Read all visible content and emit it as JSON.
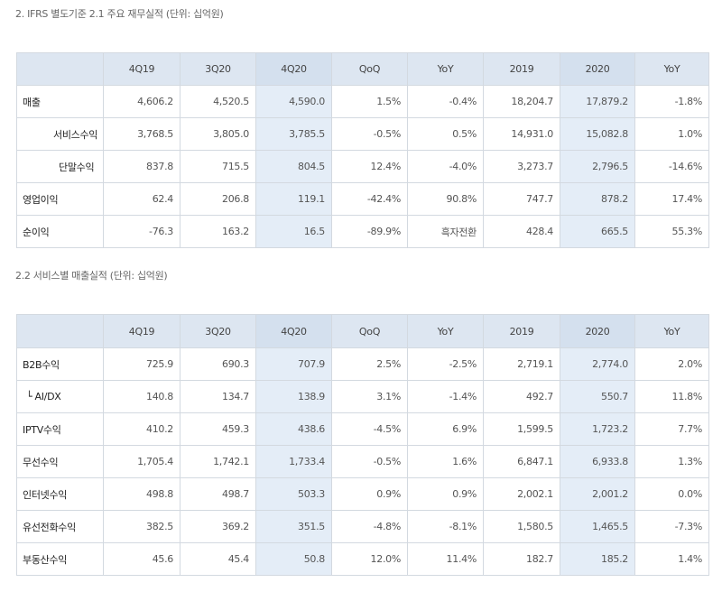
{
  "section1": {
    "caption": "2. IFRS 별도기준 2.1 주요 재무실적 (단위: 십억원)",
    "headers": [
      "",
      "4Q19",
      "3Q20",
      "4Q20",
      "QoQ",
      "YoY",
      "2019",
      "2020",
      "YoY"
    ],
    "rows": [
      {
        "label": "매출",
        "values": [
          "4,606.2",
          "4,520.5",
          "4,590.0",
          "1.5%",
          "-0.4%",
          "18,204.7",
          "17,879.2",
          "-1.8%"
        ]
      },
      {
        "label": "서비스수익",
        "values": [
          "3,768.5",
          "3,805.0",
          "3,785.5",
          "-0.5%",
          "0.5%",
          "14,931.0",
          "15,082.8",
          "1.0%"
        ]
      },
      {
        "label": "단말수익",
        "values": [
          "837.8",
          "715.5",
          "804.5",
          "12.4%",
          "-4.0%",
          "3,273.7",
          "2,796.5",
          "-14.6%"
        ]
      },
      {
        "label": "영업이익",
        "values": [
          "62.4",
          "206.8",
          "119.1",
          "-42.4%",
          "90.8%",
          "747.7",
          "878.2",
          "17.4%"
        ]
      },
      {
        "label": "순이익",
        "values": [
          "-76.3",
          "163.2",
          "16.5",
          "-89.9%",
          "흑자전환",
          "428.4",
          "665.5",
          "55.3%"
        ]
      }
    ]
  },
  "section2": {
    "caption": "2.2 서비스별 매출실적 (단위: 십억원)",
    "headers": [
      "",
      "4Q19",
      "3Q20",
      "4Q20",
      "QoQ",
      "YoY",
      "2019",
      "2020",
      "YoY"
    ],
    "rows": [
      {
        "label": "B2B수익",
        "values": [
          "725.9",
          "690.3",
          "707.9",
          "2.5%",
          "-2.5%",
          "2,719.1",
          "2,774.0",
          "2.0%"
        ]
      },
      {
        "label": "└ AI/DX",
        "values": [
          "140.8",
          "134.7",
          "138.9",
          "3.1%",
          "-1.4%",
          "492.7",
          "550.7",
          "11.8%"
        ]
      },
      {
        "label": "IPTV수익",
        "values": [
          "410.2",
          "459.3",
          "438.6",
          "-4.5%",
          "6.9%",
          "1,599.5",
          "1,723.2",
          "7.7%"
        ]
      },
      {
        "label": "무선수익",
        "values": [
          "1,705.4",
          "1,742.1",
          "1,733.4",
          "-0.5%",
          "1.6%",
          "6,847.1",
          "6,933.8",
          "1.3%"
        ]
      },
      {
        "label": "인터넷수익",
        "values": [
          "498.8",
          "498.7",
          "503.3",
          "0.9%",
          "0.9%",
          "2,002.1",
          "2,001.2",
          "0.0%"
        ]
      },
      {
        "label": "유선전화수익",
        "values": [
          "382.5",
          "369.2",
          "351.5",
          "-4.8%",
          "-8.1%",
          "1,580.5",
          "1,465.5",
          "-7.3%"
        ]
      },
      {
        "label": "부동산수익",
        "values": [
          "45.6",
          "45.4",
          "50.8",
          "12.0%",
          "11.4%",
          "182.7",
          "185.2",
          "1.4%"
        ]
      }
    ]
  }
}
